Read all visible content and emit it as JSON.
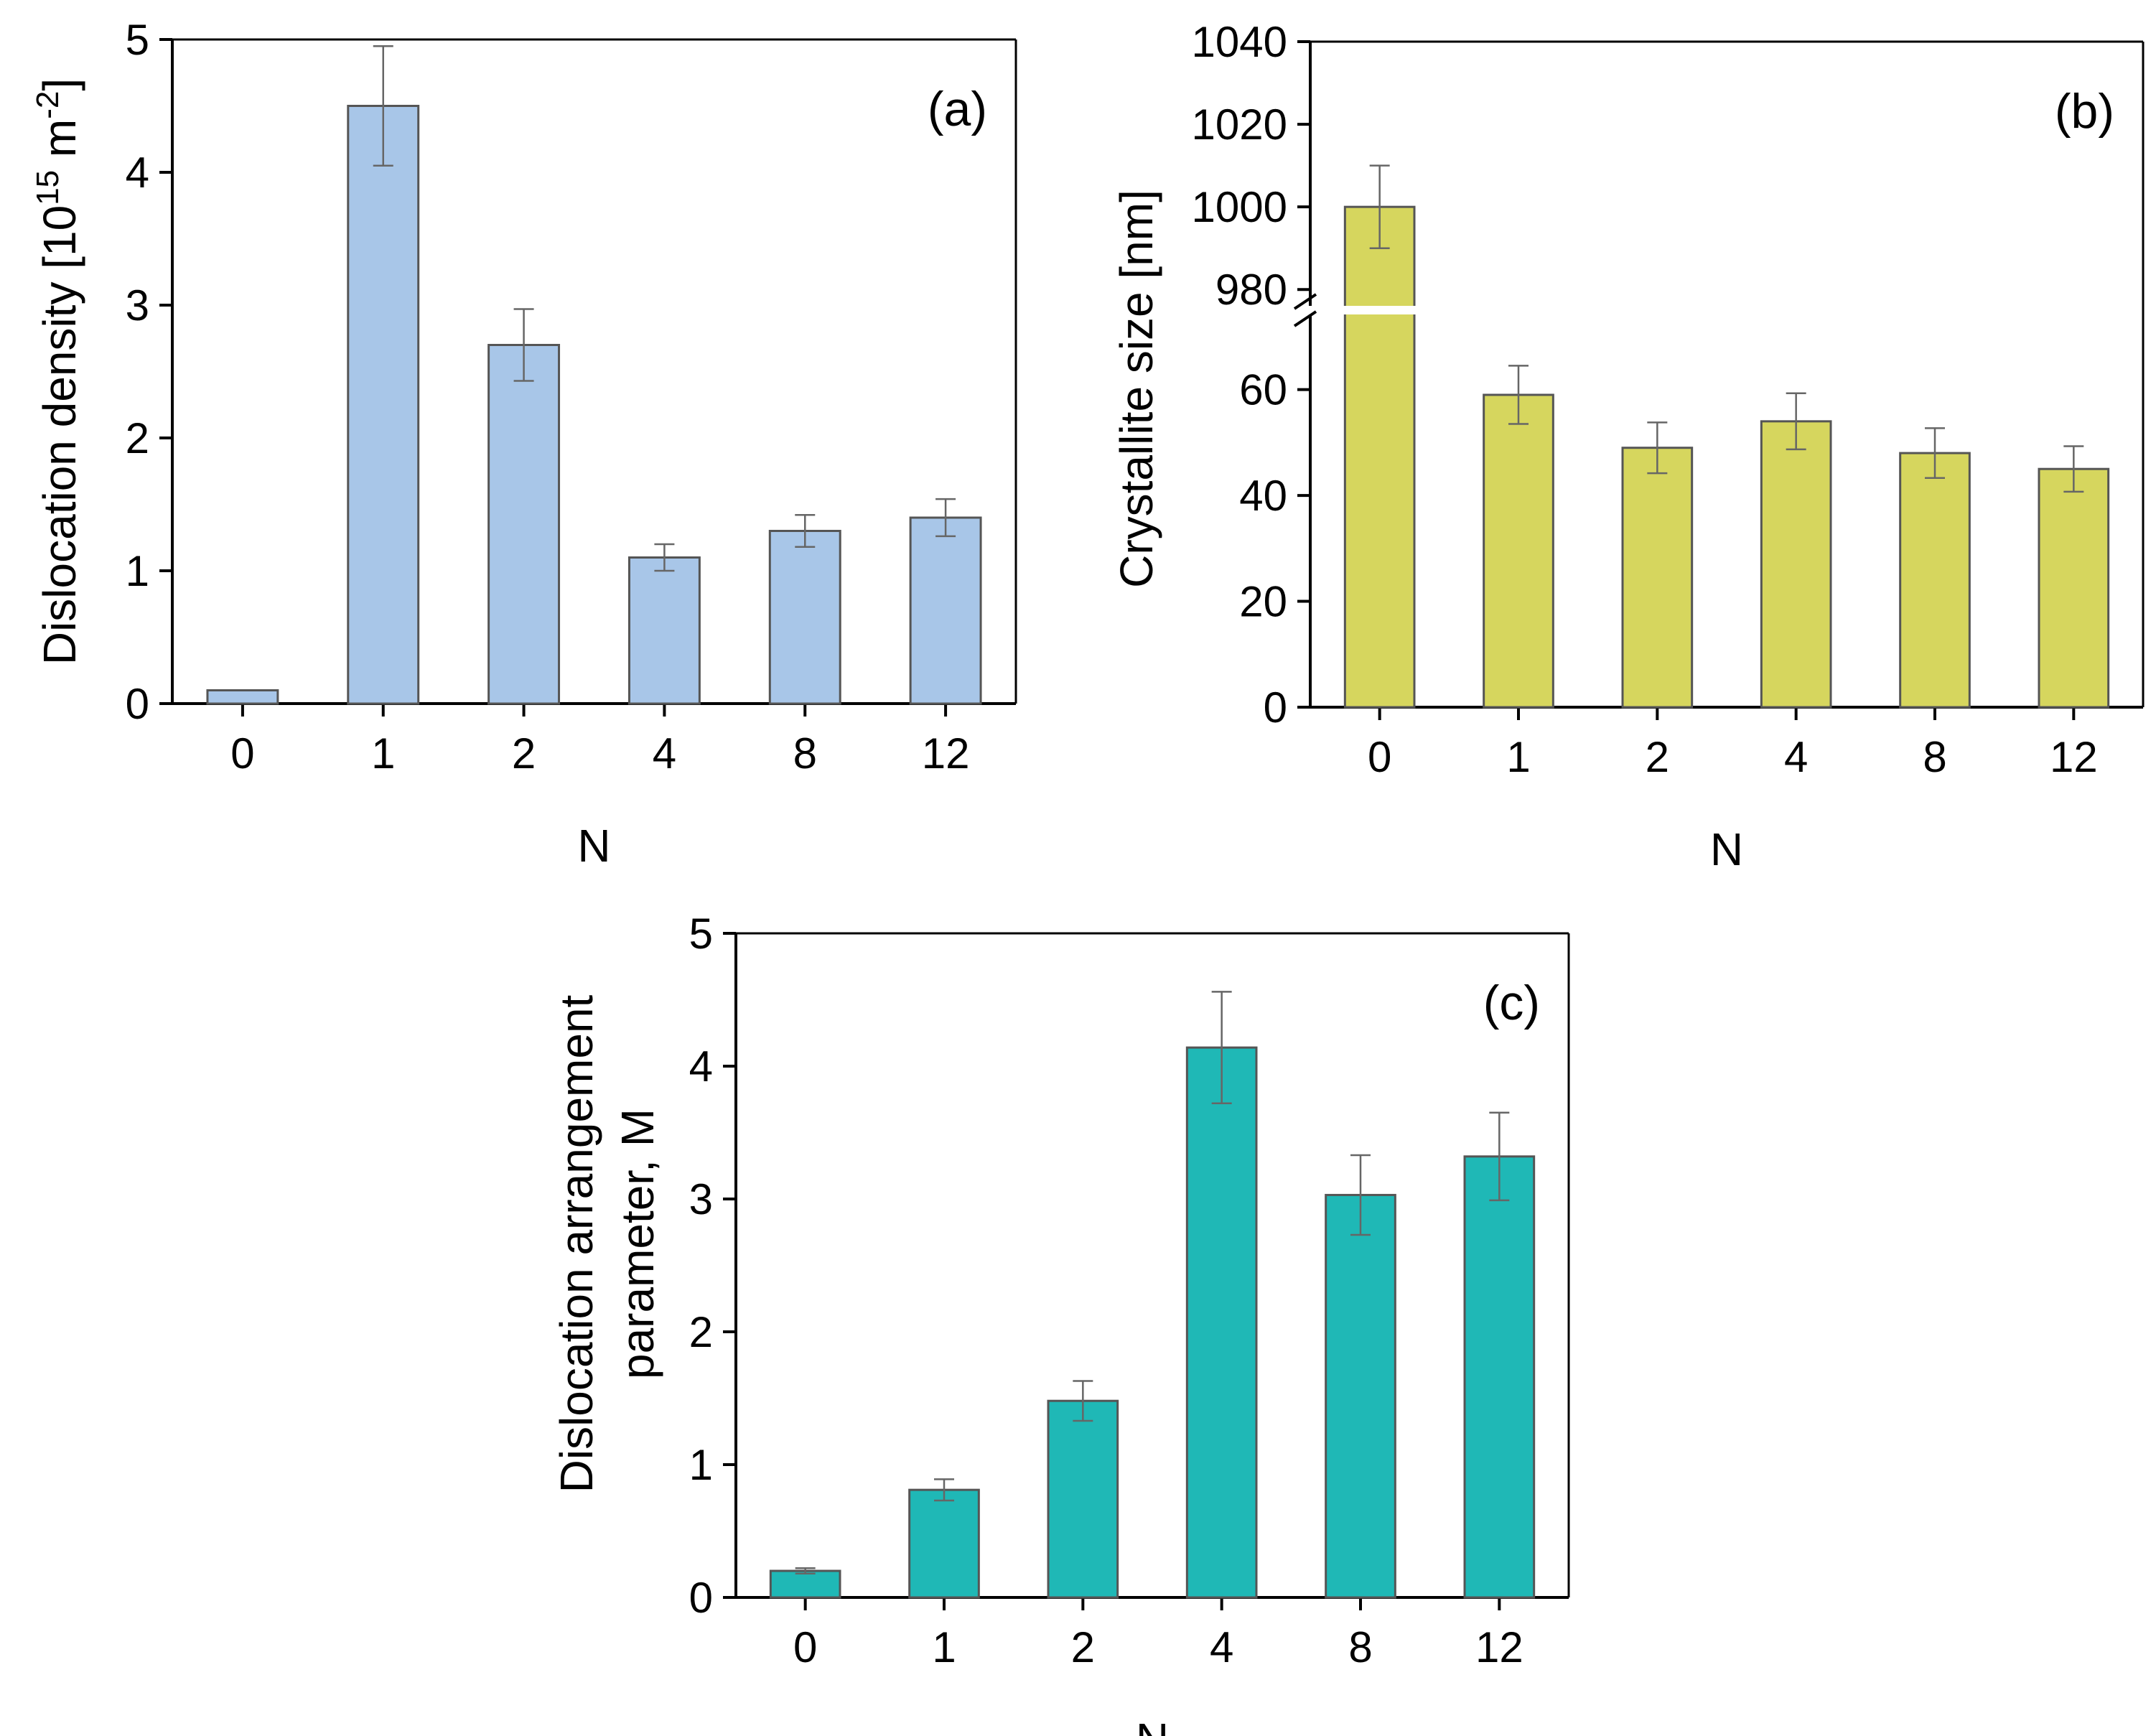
{
  "chart_data": [
    {
      "panel": "(a)",
      "type": "bar",
      "xlabel": "N",
      "ylabel_parts": [
        "Dislocation density [10",
        "15",
        " m",
        "-2",
        "]"
      ],
      "categories": [
        "0",
        "1",
        "2",
        "4",
        "8",
        "12"
      ],
      "values": [
        0.1,
        4.5,
        2.7,
        1.1,
        1.3,
        1.4
      ],
      "errors": [
        0.0,
        0.45,
        0.27,
        0.1,
        0.12,
        0.14
      ],
      "ylim": [
        0,
        5
      ],
      "yticks": [
        0,
        1,
        2,
        3,
        4,
        5
      ],
      "color": "#a8c6e8"
    },
    {
      "panel": "(b)",
      "type": "bar",
      "xlabel": "N",
      "ylabel": "Crystallite size [nm]",
      "categories": [
        "0",
        "1",
        "2",
        "4",
        "8",
        "12"
      ],
      "values": [
        1000,
        59,
        49,
        54,
        48,
        45
      ],
      "errors": [
        10,
        5.5,
        4.8,
        5.3,
        4.7,
        4.3
      ],
      "axis_break": {
        "lower_range": [
          0,
          75
        ],
        "upper_range": [
          975,
          1040
        ]
      },
      "yticks_lower": [
        0,
        20,
        40,
        60
      ],
      "yticks_upper": [
        980,
        1000,
        1020,
        1040
      ],
      "color": "#d6d65e"
    },
    {
      "panel": "(c)",
      "type": "bar",
      "xlabel": "N",
      "ylabel_lines": [
        "Dislocation arrangement",
        "parameter, M"
      ],
      "categories": [
        "0",
        "1",
        "2",
        "4",
        "8",
        "12"
      ],
      "values": [
        0.2,
        0.81,
        1.48,
        4.14,
        3.03,
        3.32
      ],
      "errors": [
        0.02,
        0.08,
        0.15,
        0.42,
        0.3,
        0.33
      ],
      "ylim": [
        0,
        5
      ],
      "yticks": [
        0,
        1,
        2,
        3,
        4,
        5
      ],
      "color": "#1fb8b6"
    }
  ]
}
